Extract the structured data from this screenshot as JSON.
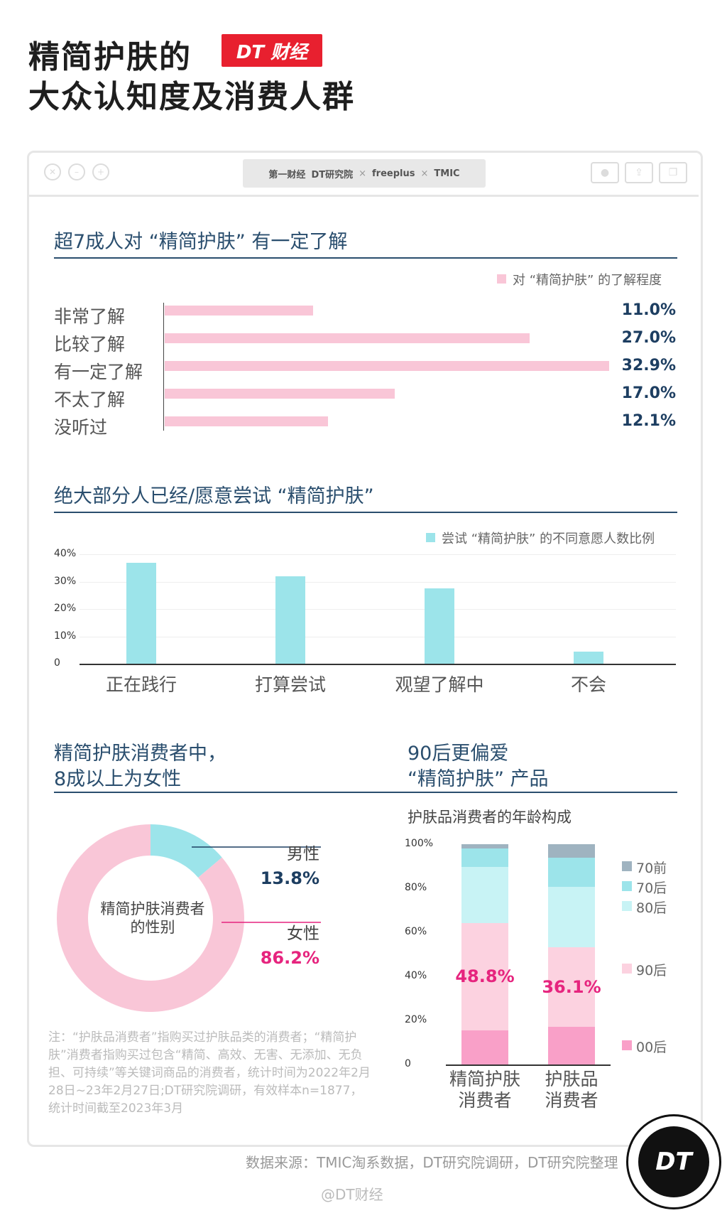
{
  "header": {
    "title_line1": "精简护肤的",
    "title_line2": "大众认知度及消费人群",
    "badge": "DT 财经"
  },
  "browser": {
    "address_items": [
      "第一财经",
      "DT研究院",
      "×",
      "freeplus",
      "×",
      "TMIC"
    ]
  },
  "sections": {
    "s1_title": "超7成人对 “精简护肤” 有一定了解",
    "s2_title": "绝大部分人已经/愿意尝试 “精简护肤”",
    "s3_title_line1": "精简护肤消费者中，",
    "s3_title_line2": "8成以上为女性",
    "s4_title_line1": "90后更偏爱",
    "s4_title_line2": "“精简护肤” 产品"
  },
  "colors": {
    "pink": "#f9c6d7",
    "cyan": "#9ce4ea",
    "navy": "#1d3e61",
    "magenta": "#e6247e"
  },
  "chart_data": [
    {
      "type": "bar",
      "orientation": "horizontal",
      "legend": "对 “精简护肤” 的了解程度",
      "categories": [
        "非常了解",
        "比较了解",
        "有一定了解",
        "不太了解",
        "没听过"
      ],
      "values": [
        11.0,
        27.0,
        32.9,
        17.0,
        12.1
      ],
      "labels": [
        "11.0%",
        "27.0%",
        "32.9%",
        "17.0%",
        "12.1%"
      ],
      "color": "#f9c6d7"
    },
    {
      "type": "bar",
      "legend": "尝试 “精简护肤” 的不同意愿人数比例",
      "categories": [
        "正在践行",
        "打算尝试",
        "观望了解中",
        "不会"
      ],
      "values": [
        37,
        32,
        27.5,
        4.5
      ],
      "ylim": [
        0,
        40
      ],
      "yticks": [
        "0",
        "10%",
        "20%",
        "30%",
        "40%"
      ],
      "color": "#9ce4ea"
    },
    {
      "type": "pie",
      "center_label": "精简护肤消费者的性别",
      "center_label_line1": "精简护肤消费者",
      "center_label_line2": "的性别",
      "slices": [
        {
          "name": "男性",
          "value": 13.8,
          "label": "13.8%",
          "color": "#9ce4ea"
        },
        {
          "name": "女性",
          "value": 86.2,
          "label": "86.2%",
          "color": "#f9c6d7"
        }
      ]
    },
    {
      "type": "bar",
      "stacked": true,
      "title": "护肤品消费者的年龄构成",
      "categories": [
        "精简护肤消费者",
        "护肤品消费者"
      ],
      "category_lines": [
        [
          "精简护肤",
          "消费者"
        ],
        [
          "护肤品",
          "消费者"
        ]
      ],
      "yticks": [
        "0",
        "20%",
        "40%",
        "60%",
        "80%",
        "100%"
      ],
      "ylim": [
        0,
        100
      ],
      "series": [
        {
          "name": "00后",
          "values": [
            15.5,
            17
          ],
          "color": "#f9a0c8"
        },
        {
          "name": "90后",
          "values": [
            48.8,
            36.1
          ],
          "color": "#fcd2e0",
          "labels": [
            "48.8%",
            "36.1%"
          ]
        },
        {
          "name": "80后",
          "values": [
            25.5,
            27.4
          ],
          "color": "#c8f3f5"
        },
        {
          "name": "70后",
          "values": [
            8.2,
            13.5
          ],
          "color": "#9ce4ea"
        },
        {
          "name": "70前",
          "values": [
            2,
            6
          ],
          "color": "#9fb3c0"
        }
      ]
    }
  ],
  "note": "注：“护肤品消费者”指购买过护肤品类的消费者；“精简护肤”消费者指购买过包含“精简、高效、无害、无添加、无负担、可持续”等关键词商品的消费者，统计时间为2022年2月28日~23年2月27日;DT研究院调研，有效样本n=1877，统计时间截至2023年3月",
  "source": "数据来源：TMIC淘系数据，DT研究院调研，DT研究院整理",
  "weibo": "@DT财经",
  "logo_text": "DT"
}
